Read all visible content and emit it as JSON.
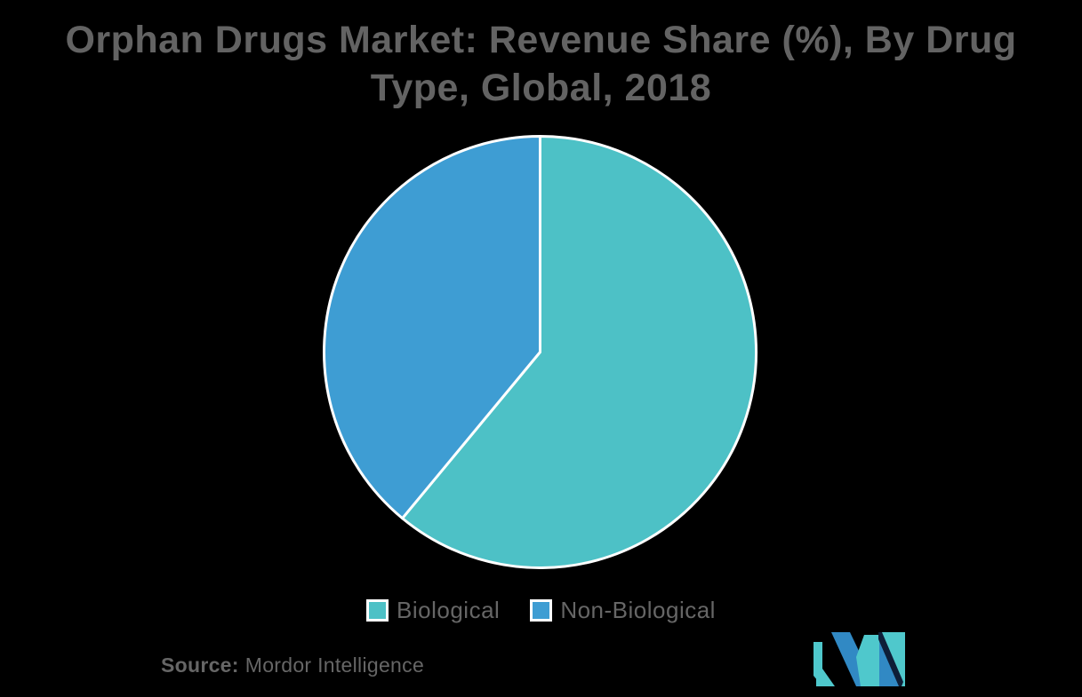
{
  "page": {
    "background": "#000000",
    "text_color": "#636363"
  },
  "title": {
    "text": "Orphan Drugs Market: Revenue Share (%), By Drug Type, Global, 2018",
    "lines": [
      "Orphan Drugs Market: Revenue Share (%), By Drug",
      "Type, Global, 2018"
    ]
  },
  "chart_data": {
    "type": "pie",
    "title": "Orphan Drugs Market: Revenue Share (%), By Drug Type, Global, 2018",
    "categories": [
      "Biological",
      "Non-Biological"
    ],
    "values": [
      61,
      39
    ],
    "colors": [
      "#4DC1C6",
      "#3E9DD3"
    ],
    "start_angle_deg": 0,
    "direction": "clockwise",
    "slice_border_color": "#FFFFFF",
    "legend_position": "bottom",
    "data_labels": false
  },
  "legend": {
    "items": [
      {
        "label": "Biological",
        "color": "#4DC1C6"
      },
      {
        "label": "Non-Biological",
        "color": "#3E9DD3"
      }
    ]
  },
  "source": {
    "label": "Source:",
    "name": "Mordor Intelligence"
  },
  "logo": {
    "name": "mordor-intelligence-logo",
    "teal": "#4FC8CC",
    "blue": "#3189C4",
    "dark": "#0E1E38"
  }
}
